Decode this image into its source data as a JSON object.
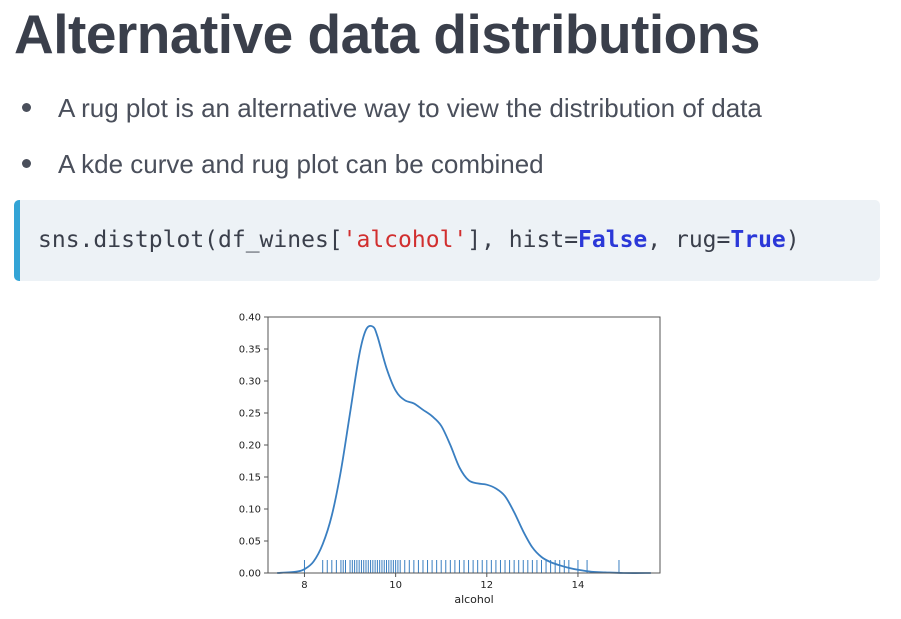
{
  "slide": {
    "title": "Alternative data distributions",
    "bullets": [
      "A rug plot is an alternative way to view the distribution of data",
      "A kde curve and rug plot can be combined"
    ]
  },
  "code": {
    "prefix": "sns.distplot(df_wines[",
    "string": "'alcohol'",
    "middle": "], hist=",
    "kw1": "False",
    "sep": ", rug=",
    "kw2": "True",
    "suffix": ")"
  },
  "colors": {
    "title": "#3a3f4b",
    "text": "#4a4f5b",
    "code_bg": "#edf2f6",
    "code_accent": "#33a4d6",
    "string": "#d12f2f",
    "keyword": "#2b38d8",
    "line": "#3a7fc1"
  },
  "chart_data": {
    "type": "line",
    "xlabel": "alcohol",
    "ylabel": "",
    "xlim": [
      7.2,
      15.8
    ],
    "ylim": [
      0,
      0.4
    ],
    "xticks": [
      8,
      10,
      12,
      14
    ],
    "yticks": [
      0.0,
      0.05,
      0.1,
      0.15,
      0.2,
      0.25,
      0.3,
      0.35,
      0.4
    ],
    "ytick_labels": [
      "0.00",
      "0.05",
      "0.10",
      "0.15",
      "0.20",
      "0.25",
      "0.30",
      "0.35",
      "0.40"
    ],
    "grid": false,
    "kde": {
      "x": [
        7.4,
        7.8,
        8.0,
        8.2,
        8.4,
        8.6,
        8.8,
        9.0,
        9.2,
        9.35,
        9.5,
        9.6,
        9.8,
        10.0,
        10.2,
        10.4,
        10.6,
        10.8,
        11.0,
        11.2,
        11.4,
        11.6,
        11.8,
        12.0,
        12.2,
        12.4,
        12.6,
        12.8,
        13.0,
        13.2,
        13.4,
        13.6,
        13.8,
        14.0,
        14.3,
        14.6,
        15.0,
        15.6
      ],
      "y": [
        0.0,
        0.002,
        0.006,
        0.018,
        0.045,
        0.09,
        0.16,
        0.25,
        0.34,
        0.38,
        0.385,
        0.37,
        0.32,
        0.285,
        0.27,
        0.265,
        0.255,
        0.245,
        0.23,
        0.2,
        0.165,
        0.145,
        0.14,
        0.138,
        0.132,
        0.12,
        0.095,
        0.065,
        0.04,
        0.025,
        0.017,
        0.012,
        0.008,
        0.005,
        0.002,
        0.001,
        0.0,
        0.0
      ]
    },
    "rug": [
      8.0,
      8.4,
      8.5,
      8.6,
      8.7,
      8.8,
      8.85,
      8.9,
      9.0,
      9.05,
      9.1,
      9.15,
      9.2,
      9.25,
      9.3,
      9.35,
      9.4,
      9.45,
      9.5,
      9.55,
      9.6,
      9.65,
      9.7,
      9.75,
      9.8,
      9.85,
      9.9,
      9.95,
      10.0,
      10.05,
      10.1,
      10.2,
      10.3,
      10.4,
      10.5,
      10.6,
      10.7,
      10.8,
      10.9,
      11.0,
      11.1,
      11.2,
      11.3,
      11.4,
      11.5,
      11.6,
      11.7,
      11.8,
      11.9,
      12.0,
      12.1,
      12.2,
      12.3,
      12.4,
      12.5,
      12.6,
      12.7,
      12.8,
      12.9,
      13.0,
      13.1,
      13.2,
      13.3,
      13.4,
      13.5,
      13.6,
      13.7,
      13.8,
      14.0,
      14.2,
      14.9
    ]
  }
}
